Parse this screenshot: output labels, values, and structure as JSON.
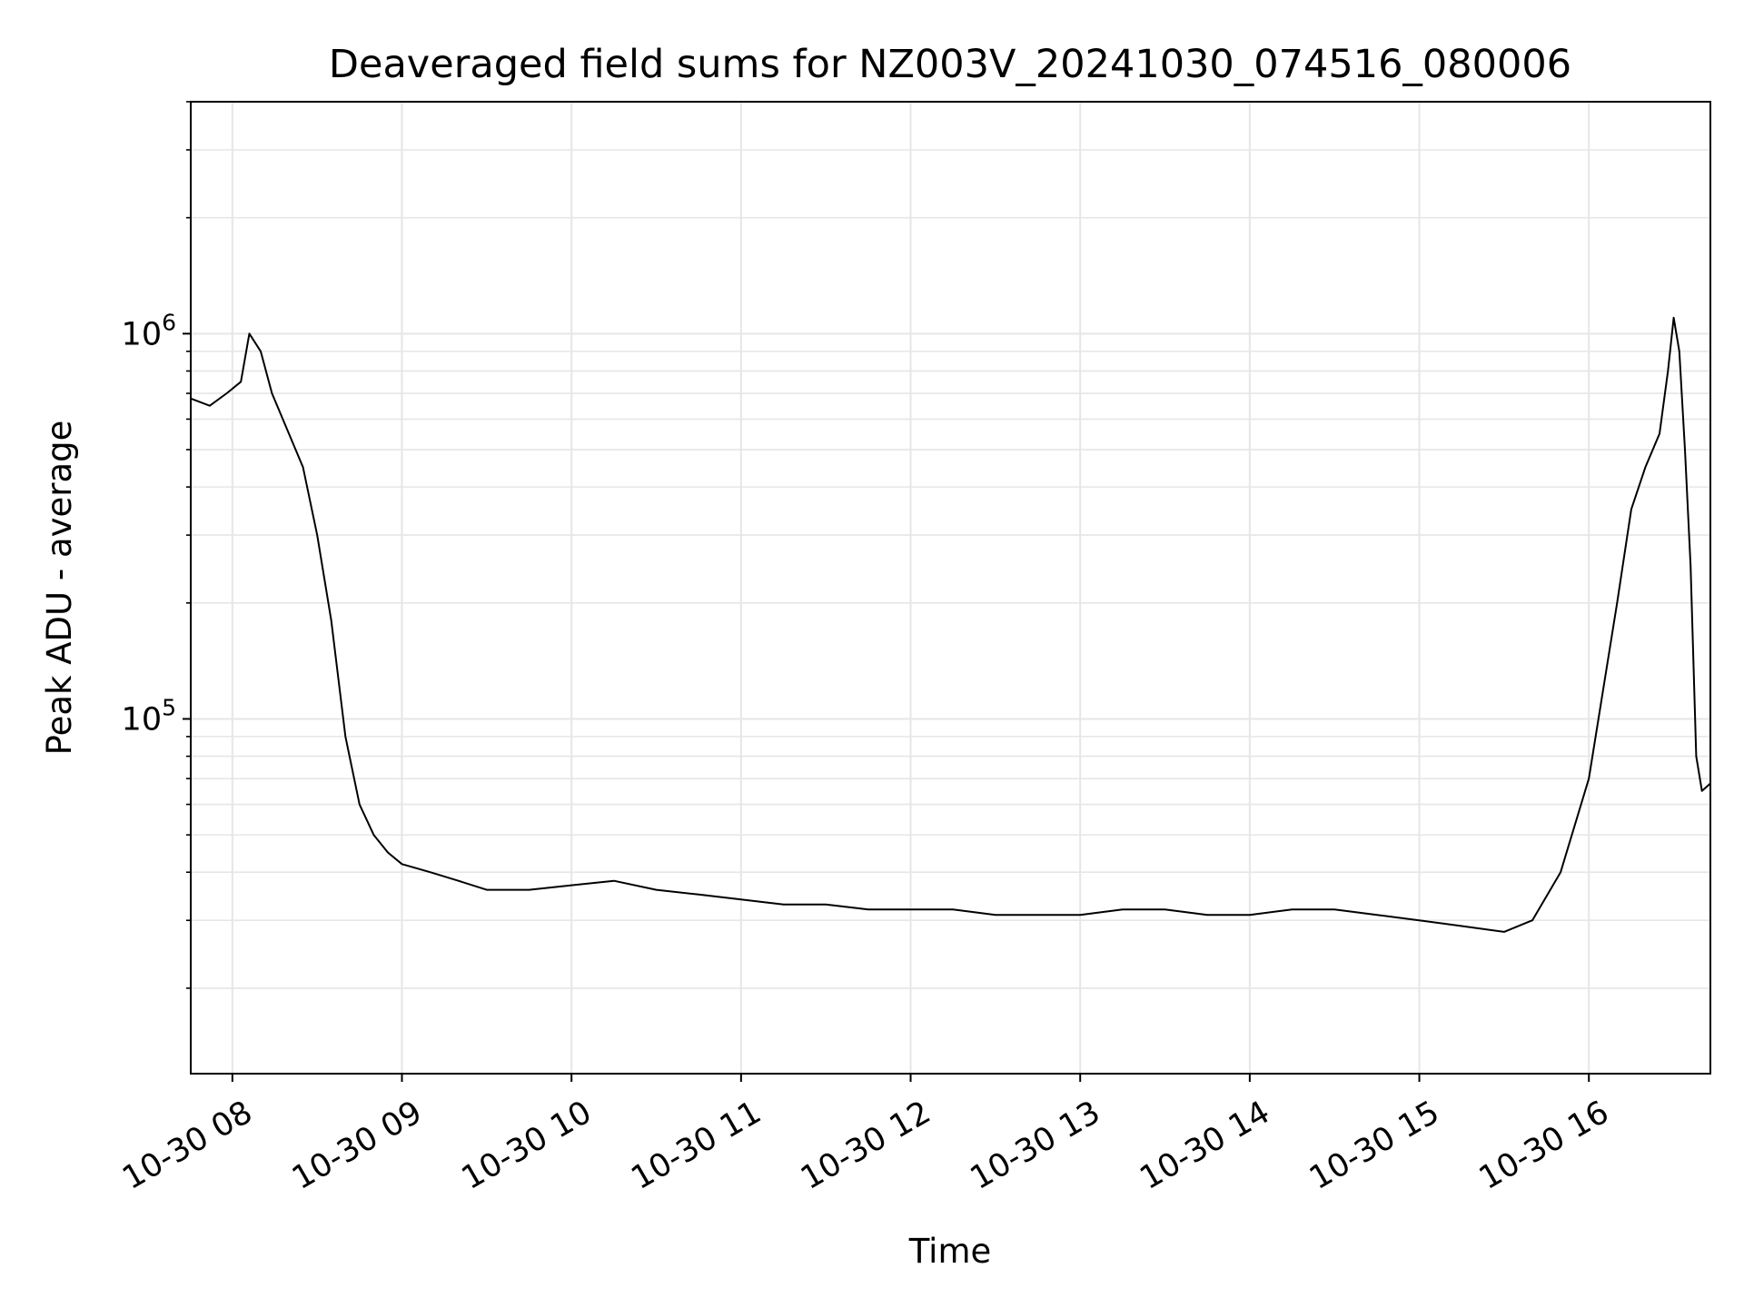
{
  "chart_data": {
    "type": "line",
    "title": "Deaveraged field sums for NZ003V_20241030_074516_080006",
    "xlabel": "Time",
    "ylabel": "Peak ADU - average",
    "x_range": [
      "2024-10-30 07:45:16",
      "2024-10-30 16:43:00"
    ],
    "y_scale": "log",
    "ylim": [
      12000,
      4000000
    ],
    "grid": true,
    "line_color": "#000000",
    "grid_color": "#e6e6e6",
    "x_ticks": [
      {
        "value": "2024-10-30 08:00",
        "label": "10-30 08"
      },
      {
        "value": "2024-10-30 09:00",
        "label": "10-30 09"
      },
      {
        "value": "2024-10-30 10:00",
        "label": "10-30 10"
      },
      {
        "value": "2024-10-30 11:00",
        "label": "10-30 11"
      },
      {
        "value": "2024-10-30 12:00",
        "label": "10-30 12"
      },
      {
        "value": "2024-10-30 13:00",
        "label": "10-30 13"
      },
      {
        "value": "2024-10-30 14:00",
        "label": "10-30 14"
      },
      {
        "value": "2024-10-30 15:00",
        "label": "10-30 15"
      },
      {
        "value": "2024-10-30 16:00",
        "label": "10-30 16"
      }
    ],
    "y_ticks": [
      {
        "value": 100000,
        "base": "10",
        "exp": "5"
      },
      {
        "value": 1000000,
        "base": "10",
        "exp": "6"
      }
    ],
    "series": [
      {
        "x": [
          "07:45",
          "07:52",
          "07:58",
          "08:03",
          "08:06",
          "08:10",
          "08:14",
          "08:20",
          "08:25",
          "08:30",
          "08:35",
          "08:40",
          "08:45",
          "08:50",
          "08:55",
          "09:00",
          "09:10",
          "09:20",
          "09:30",
          "09:45",
          "10:00",
          "10:15",
          "10:30",
          "10:45",
          "11:00",
          "11:15",
          "11:30",
          "11:45",
          "12:00",
          "12:15",
          "12:30",
          "12:45",
          "13:00",
          "13:15",
          "13:30",
          "13:45",
          "14:00",
          "14:15",
          "14:30",
          "14:45",
          "15:00",
          "15:15",
          "15:30",
          "15:40",
          "15:50",
          "16:00",
          "16:10",
          "16:15",
          "16:20",
          "16:25",
          "16:28",
          "16:30",
          "16:32",
          "16:34",
          "16:36",
          "16:38",
          "16:40",
          "16:43"
        ],
        "y": [
          680000,
          650000,
          700000,
          750000,
          1000000,
          900000,
          700000,
          550000,
          450000,
          300000,
          180000,
          90000,
          60000,
          50000,
          45000,
          42000,
          40000,
          38000,
          36000,
          36000,
          37000,
          38000,
          36000,
          35000,
          34000,
          33000,
          33000,
          32000,
          32000,
          32000,
          31000,
          31000,
          31000,
          32000,
          32000,
          31000,
          31000,
          32000,
          32000,
          31000,
          30000,
          29000,
          28000,
          30000,
          40000,
          70000,
          200000,
          350000,
          450000,
          550000,
          800000,
          1100000,
          900000,
          500000,
          250000,
          80000,
          65000,
          68000
        ]
      }
    ]
  }
}
